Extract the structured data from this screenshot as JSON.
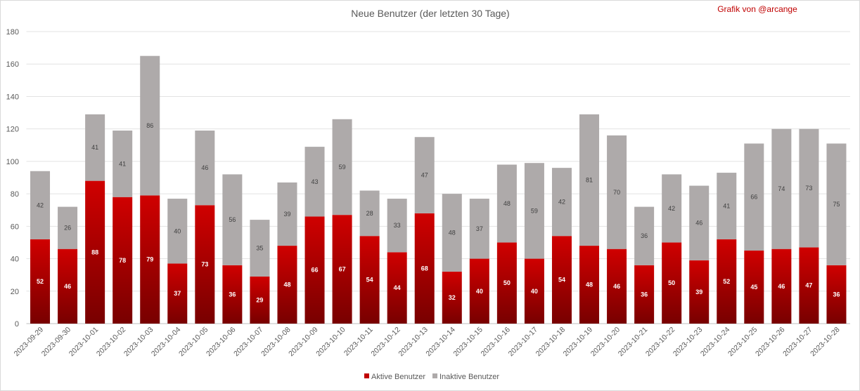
{
  "chart_data": {
    "type": "bar",
    "stacked": true,
    "title": "Neue Benutzer (der letzten 30 Tage)",
    "annotation": "Grafik von @arcange",
    "xlabel": "",
    "ylabel": "",
    "ylim": [
      0,
      180
    ],
    "yticks": [
      0,
      20,
      40,
      60,
      80,
      100,
      120,
      140,
      160,
      180
    ],
    "grid": true,
    "legend_position": "bottom",
    "categories": [
      "2023-09-29",
      "2023-09-30",
      "2023-10-01",
      "2023-10-02",
      "2023-10-03",
      "2023-10-04",
      "2023-10-05",
      "2023-10-06",
      "2023-10-07",
      "2023-10-08",
      "2023-10-09",
      "2023-10-10",
      "2023-10-11",
      "2023-10-12",
      "2023-10-13",
      "2023-10-14",
      "2023-10-15",
      "2023-10-16",
      "2023-10-17",
      "2023-10-18",
      "2023-10-19",
      "2023-10-20",
      "2023-10-21",
      "2023-10-22",
      "2023-10-23",
      "2023-10-24",
      "2023-10-25",
      "2023-10-26",
      "2023-10-27",
      "2023-10-28"
    ],
    "series": [
      {
        "name": "Aktive Benutzer",
        "color": "#c00000",
        "values": [
          52,
          46,
          88,
          78,
          79,
          37,
          73,
          36,
          29,
          48,
          66,
          67,
          54,
          44,
          68,
          32,
          40,
          50,
          40,
          54,
          48,
          46,
          36,
          50,
          39,
          52,
          45,
          46,
          47,
          36
        ]
      },
      {
        "name": "Inaktive Benutzer",
        "color": "#aeaaaa",
        "values": [
          42,
          26,
          41,
          41,
          86,
          40,
          46,
          56,
          35,
          39,
          43,
          59,
          28,
          33,
          47,
          48,
          37,
          48,
          59,
          42,
          81,
          70,
          36,
          42,
          46,
          41,
          66,
          74,
          73,
          75
        ]
      }
    ]
  }
}
